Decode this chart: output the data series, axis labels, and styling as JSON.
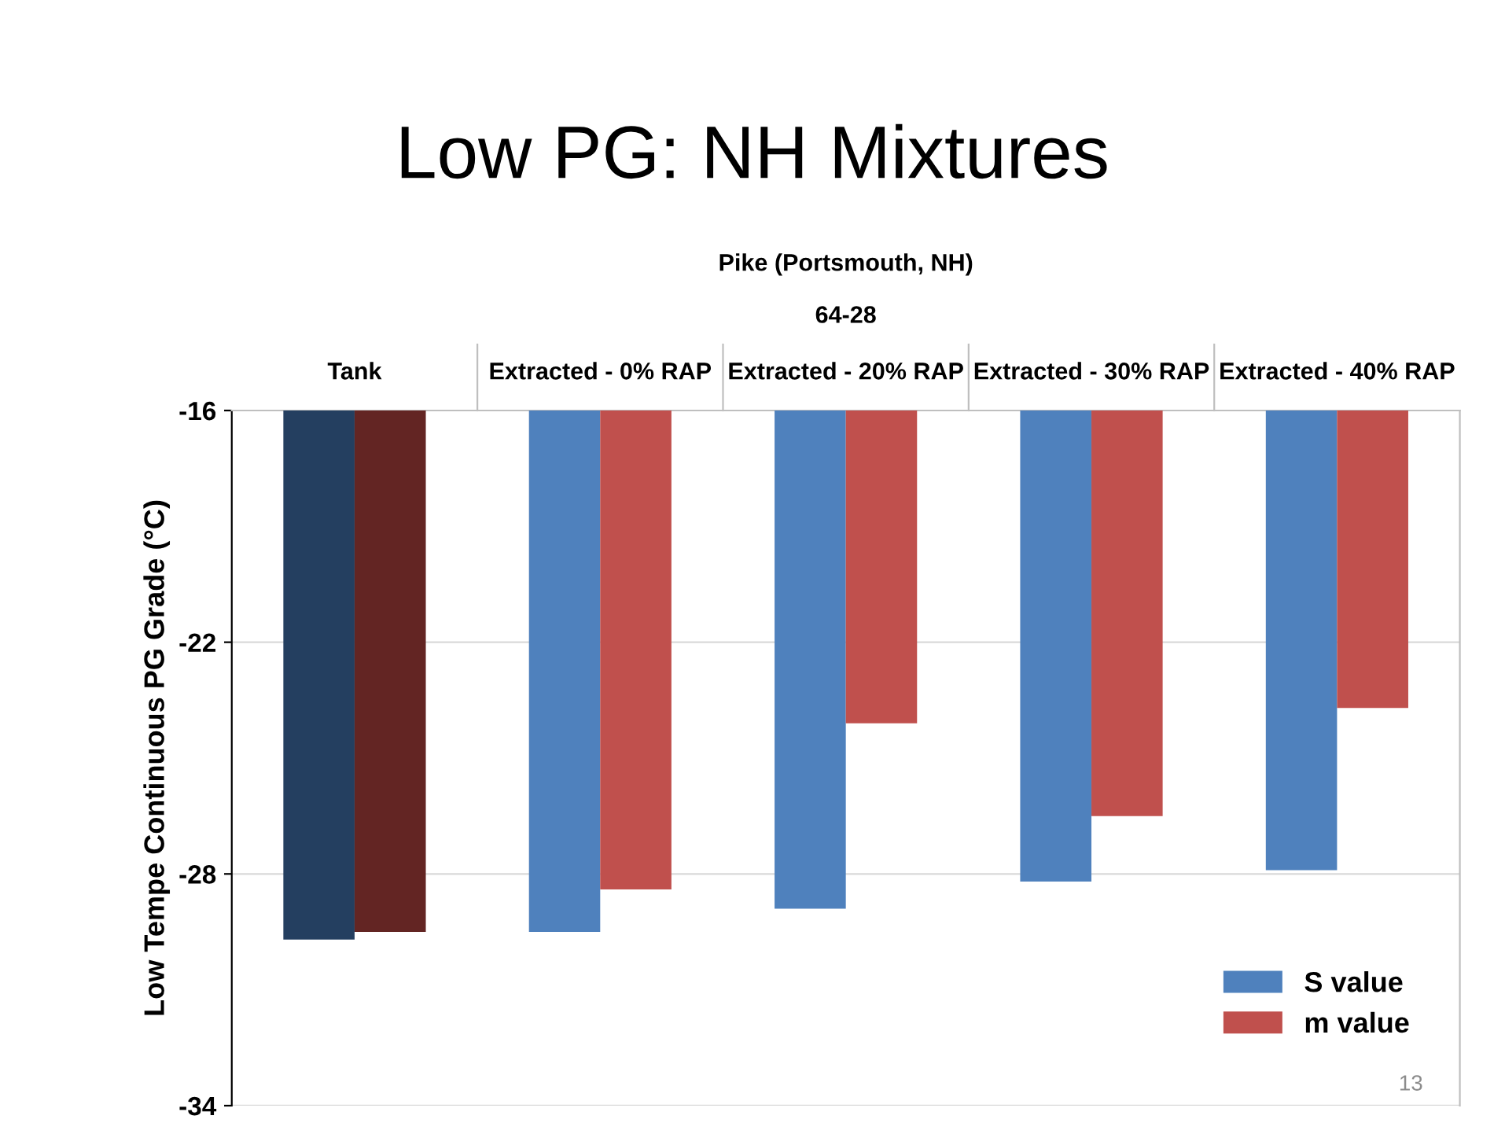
{
  "chart_data": {
    "type": "bar",
    "title": "Low PG: NH Mixtures",
    "subtitle": "Pike (Portsmouth, NH)",
    "annotations": [
      "64-28",
      "13"
    ],
    "ylabel": "Low Tempe Continuous PG Grade (°C)",
    "categories": [
      "Tank",
      "Extracted - 0% RAP",
      "Extracted - 20% RAP",
      "Extracted - 30% RAP",
      "Extracted - 40% RAP"
    ],
    "series": [
      {
        "name": "S value",
        "color": "#4f81bd",
        "colors": [
          "#243f60",
          "#4f81bd",
          "#4f81bd",
          "#4f81bd",
          "#4f81bd"
        ],
        "values": [
          -29.7,
          -29.5,
          -28.9,
          -28.2,
          -27.9
        ]
      },
      {
        "name": "m value",
        "color": "#c0504d",
        "colors": [
          "#632523",
          "#c0504d",
          "#c0504d",
          "#c0504d",
          "#c0504d"
        ],
        "values": [
          -29.5,
          -28.4,
          -24.1,
          -26.5,
          -23.7
        ]
      }
    ],
    "ylim": [
      -34,
      -16
    ],
    "yticks": [
      -16,
      -22,
      -28,
      -34
    ],
    "grid": "y",
    "legend": "bottom right"
  }
}
